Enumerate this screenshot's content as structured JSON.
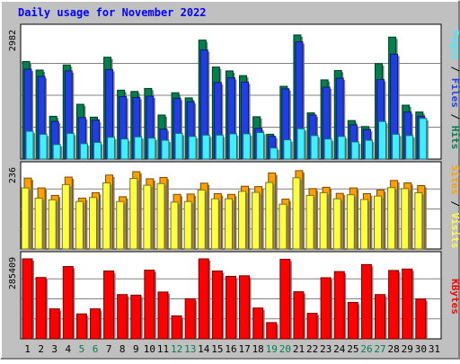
{
  "chart_title": "Daily usage for November 2022",
  "colors": {
    "page_background": "#C0C0C0",
    "plot_background": "#FFFFFF",
    "title": "#0000FF",
    "hits": "#007F4F",
    "files": "#1F3FE5",
    "pages": "#3FEFFF",
    "visits": "#FFA000",
    "sites": "#FFFF40",
    "kbytes": "#FF0000",
    "weekend_label": "#007F4F",
    "weekday_label": "#000000"
  },
  "panel_labels": {
    "pages": "Pages",
    "files": "Files",
    "hits": "Hits",
    "sites": "Sites",
    "visits": "Visits",
    "kbytes": "KBytes",
    "slash": " / "
  },
  "chart_data": [
    {
      "type": "bar",
      "panel": "hits-files-pages",
      "categories": [
        "1",
        "2",
        "3",
        "4",
        "5",
        "6",
        "7",
        "8",
        "9",
        "10",
        "11",
        "12",
        "13",
        "14",
        "15",
        "16",
        "17",
        "18",
        "19",
        "20",
        "21",
        "22",
        "23",
        "24",
        "25",
        "26",
        "27",
        "28",
        "29",
        "30",
        "31"
      ],
      "ymax_label": "2982",
      "ylim": [
        0,
        2982
      ],
      "series": [
        {
          "name": "Hits",
          "values": [
            2280,
            2080,
            1000,
            2200,
            1280,
            980,
            2380,
            1610,
            1580,
            1650,
            1030,
            1550,
            1430,
            2780,
            2150,
            2060,
            1950,
            990,
            580,
            1700,
            2900,
            1080,
            1850,
            2070,
            900,
            760,
            2230,
            2850,
            1260,
            1100,
            0
          ]
        },
        {
          "name": "Files",
          "values": [
            2100,
            1930,
            880,
            2060,
            970,
            910,
            2090,
            1460,
            1440,
            1470,
            700,
            1420,
            1340,
            2550,
            1790,
            1900,
            1800,
            720,
            530,
            1640,
            2740,
            1030,
            1680,
            1890,
            800,
            690,
            1860,
            2450,
            1100,
            1000,
            0
          ]
        },
        {
          "name": "Pages",
          "values": [
            650,
            580,
            340,
            600,
            360,
            390,
            510,
            470,
            520,
            490,
            440,
            600,
            530,
            560,
            560,
            590,
            590,
            620,
            260,
            450,
            710,
            550,
            470,
            530,
            400,
            440,
            880,
            580,
            550,
            950,
            0
          ]
        }
      ]
    },
    {
      "type": "bar",
      "panel": "visits-sites",
      "categories": [
        "1",
        "2",
        "3",
        "4",
        "5",
        "6",
        "7",
        "8",
        "9",
        "10",
        "11",
        "12",
        "13",
        "14",
        "15",
        "16",
        "17",
        "18",
        "19",
        "20",
        "21",
        "22",
        "23",
        "24",
        "25",
        "26",
        "27",
        "28",
        "29",
        "30",
        "31"
      ],
      "ymax_label": "236",
      "ylim": [
        0,
        236
      ],
      "series": [
        {
          "name": "Visits",
          "values": [
            209,
            180,
            158,
            212,
            150,
            166,
            218,
            154,
            228,
            207,
            211,
            161,
            162,
            194,
            163,
            161,
            185,
            184,
            224,
            147,
            231,
            178,
            182,
            164,
            180,
            163,
            174,
            202,
            195,
            187,
            0
          ]
        },
        {
          "name": "Sites",
          "values": [
            180,
            150,
            145,
            190,
            140,
            152,
            195,
            140,
            208,
            188,
            193,
            138,
            140,
            174,
            148,
            148,
            170,
            167,
            196,
            132,
            210,
            158,
            166,
            148,
            160,
            146,
            156,
            181,
            178,
            166,
            0
          ]
        }
      ]
    },
    {
      "type": "bar",
      "panel": "kbytes",
      "categories": [
        "1",
        "2",
        "3",
        "4",
        "5",
        "6",
        "7",
        "8",
        "9",
        "10",
        "11",
        "12",
        "13",
        "14",
        "15",
        "16",
        "17",
        "18",
        "19",
        "20",
        "21",
        "22",
        "23",
        "24",
        "25",
        "26",
        "27",
        "28",
        "29",
        "30",
        "31"
      ],
      "ymax_label": "285409",
      "ylim": [
        0,
        285409
      ],
      "series": [
        {
          "name": "KBytes",
          "values": [
            285409,
            218900,
            107000,
            258000,
            89000,
            107000,
            242000,
            158000,
            156000,
            245000,
            167000,
            82000,
            143000,
            285409,
            242000,
            223000,
            225000,
            110000,
            58000,
            284000,
            168000,
            91000,
            218000,
            240000,
            130000,
            265000,
            158000,
            244000,
            249000,
            142000,
            0
          ]
        }
      ]
    }
  ],
  "x_labels": [
    {
      "text": "1",
      "weekend": false
    },
    {
      "text": "2",
      "weekend": false
    },
    {
      "text": "3",
      "weekend": false
    },
    {
      "text": "4",
      "weekend": false
    },
    {
      "text": "5",
      "weekend": true
    },
    {
      "text": "6",
      "weekend": true
    },
    {
      "text": "7",
      "weekend": false
    },
    {
      "text": "8",
      "weekend": false
    },
    {
      "text": "9",
      "weekend": false
    },
    {
      "text": "10",
      "weekend": false
    },
    {
      "text": "11",
      "weekend": false
    },
    {
      "text": "12",
      "weekend": true
    },
    {
      "text": "13",
      "weekend": true
    },
    {
      "text": "14",
      "weekend": false
    },
    {
      "text": "15",
      "weekend": false
    },
    {
      "text": "16",
      "weekend": false
    },
    {
      "text": "17",
      "weekend": false
    },
    {
      "text": "18",
      "weekend": false
    },
    {
      "text": "19",
      "weekend": true
    },
    {
      "text": "20",
      "weekend": true
    },
    {
      "text": "21",
      "weekend": false
    },
    {
      "text": "22",
      "weekend": false
    },
    {
      "text": "23",
      "weekend": false
    },
    {
      "text": "24",
      "weekend": false
    },
    {
      "text": "25",
      "weekend": false
    },
    {
      "text": "26",
      "weekend": true
    },
    {
      "text": "27",
      "weekend": true
    },
    {
      "text": "28",
      "weekend": false
    },
    {
      "text": "29",
      "weekend": false
    },
    {
      "text": "30",
      "weekend": false
    },
    {
      "text": "31",
      "weekend": false
    }
  ]
}
